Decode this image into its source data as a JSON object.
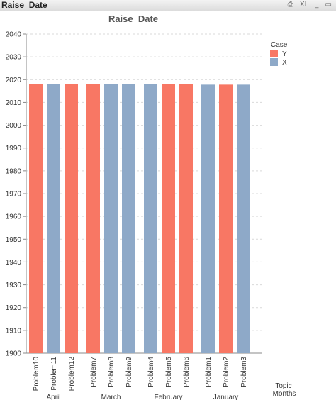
{
  "window": {
    "title": "Raise_Date",
    "controls": {
      "print_label": "⎙",
      "xl_label": "XL",
      "minimize_label": "_",
      "restore_label": "▭"
    }
  },
  "chart_data": {
    "type": "bar",
    "title": "Raise_Date",
    "legend": {
      "title": "Case",
      "position": "top-right"
    },
    "series_colors": {
      "Y": "#f87764",
      "X": "#8ea9c8"
    },
    "series": [
      {
        "name": "Y"
      },
      {
        "name": "X"
      }
    ],
    "ylim": [
      1900,
      2040
    ],
    "yticks": [
      1900,
      1910,
      1920,
      1930,
      1940,
      1950,
      1960,
      1970,
      1980,
      1990,
      2000,
      2010,
      2020,
      2030,
      2040
    ],
    "grid": true,
    "dimension_labels": [
      "Topic",
      "Months"
    ],
    "groups": [
      {
        "label": "April",
        "bars": [
          {
            "category": "Problem10",
            "case": "Y",
            "value": 2018
          },
          {
            "category": "Problem11",
            "case": "X",
            "value": 2018
          },
          {
            "category": "Problem12",
            "case": "Y",
            "value": 2018
          }
        ]
      },
      {
        "label": "March",
        "bars": [
          {
            "category": "Problem7",
            "case": "Y",
            "value": 2018
          },
          {
            "category": "Problem8",
            "case": "X",
            "value": 2018
          },
          {
            "category": "Problem9",
            "case": "X",
            "value": 2018
          }
        ]
      },
      {
        "label": "February",
        "bars": [
          {
            "category": "Problem4",
            "case": "X",
            "value": 2018
          },
          {
            "category": "Problem5",
            "case": "Y",
            "value": 2018
          },
          {
            "category": "Problem6",
            "case": "Y",
            "value": 2018
          }
        ]
      },
      {
        "label": "January",
        "bars": [
          {
            "category": "Problem1",
            "case": "X",
            "value": 2017.8
          },
          {
            "category": "Problem2",
            "case": "Y",
            "value": 2017.8
          },
          {
            "category": "Problem3",
            "case": "X",
            "value": 2017.8
          }
        ]
      }
    ]
  }
}
